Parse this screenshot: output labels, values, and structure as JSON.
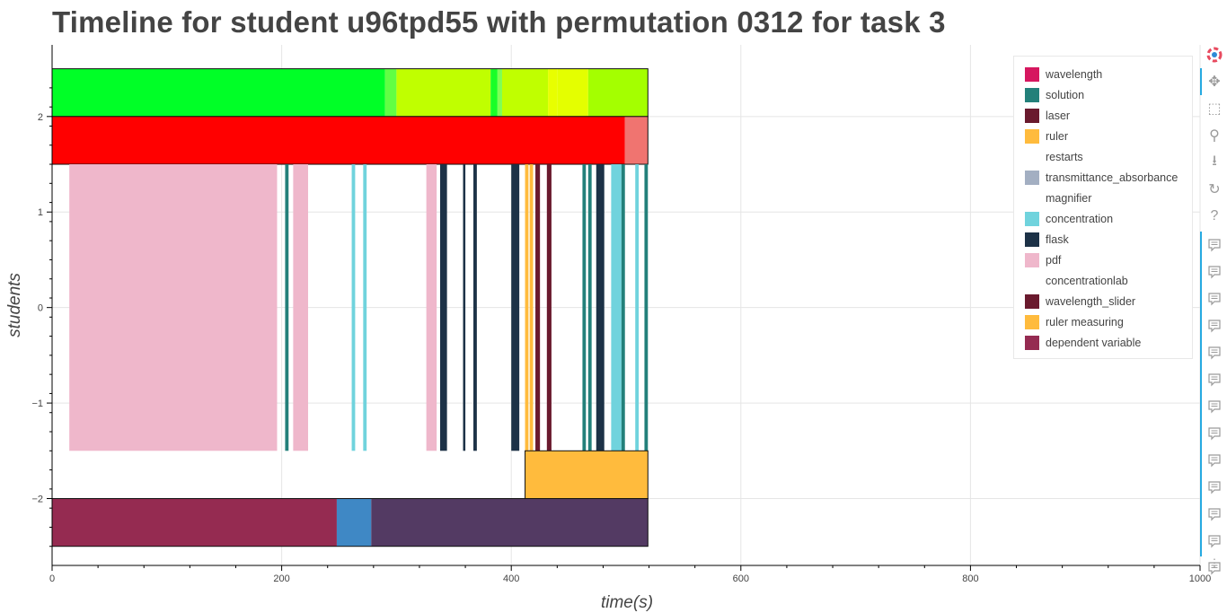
{
  "chart_data": {
    "type": "timeline",
    "title": "Timeline for student u96tpd55 with permutation 0312 for task 3",
    "xlabel": "time(s)",
    "ylabel": "students",
    "xlim": [
      0,
      1000
    ],
    "ylim": [
      -2.7,
      2.75
    ],
    "x_ticks": [
      0,
      200,
      400,
      600,
      800,
      1000
    ],
    "y_ticks": [
      2,
      1,
      0,
      -1,
      -2
    ],
    "y_tick_labels": [
      "2",
      "1",
      "0",
      "−1",
      "−2"
    ],
    "grid": true,
    "legend_position": "top-right",
    "legend": [
      {
        "name": "wavelength",
        "color": "#d6175f"
      },
      {
        "name": "solution",
        "color": "#23807a"
      },
      {
        "name": "laser",
        "color": "#6a1a2e"
      },
      {
        "name": "ruler",
        "color": "#ffbb3d"
      },
      {
        "name": "restarts",
        "color": "#ffffff"
      },
      {
        "name": "transmittance_absorbance",
        "color": "#a3afc2"
      },
      {
        "name": "magnifier",
        "color": "#ffffff"
      },
      {
        "name": "concentration",
        "color": "#70d3dd"
      },
      {
        "name": "flask",
        "color": "#1d3247"
      },
      {
        "name": "pdf",
        "color": "#efb7cb"
      },
      {
        "name": "concentrationlab",
        "color": "#ffffff"
      },
      {
        "name": "wavelength_slider",
        "color": "#6a1a2e"
      },
      {
        "name": "ruler measuring",
        "color": "#ffbb3d"
      },
      {
        "name": "dependent variable",
        "color": "#952b51"
      }
    ],
    "rows": [
      {
        "y0": 2.0,
        "y1": 2.5,
        "segments": [
          {
            "start": 0,
            "end": 290,
            "color": "#00ff27"
          },
          {
            "start": 290,
            "end": 300,
            "color": "#61ff44"
          },
          {
            "start": 300,
            "end": 382,
            "color": "#c0ff00"
          },
          {
            "start": 382,
            "end": 388,
            "color": "#19ff27"
          },
          {
            "start": 388,
            "end": 392,
            "color": "#7fff55"
          },
          {
            "start": 392,
            "end": 432,
            "color": "#c0ff00"
          },
          {
            "start": 432,
            "end": 440,
            "color": "#e8ff00"
          },
          {
            "start": 440,
            "end": 467,
            "color": "#e4ff00"
          },
          {
            "start": 467,
            "end": 519,
            "color": "#a4ff00"
          }
        ]
      },
      {
        "y0": 1.5,
        "y1": 2.0,
        "segments": [
          {
            "start": 0,
            "end": 499,
            "color": "#ff0000"
          },
          {
            "start": 499,
            "end": 519,
            "color": "#f07470"
          }
        ]
      },
      {
        "y0": -1.5,
        "y1": 1.5,
        "segments": [
          {
            "start": 15,
            "end": 196,
            "color": "#efb7cb"
          },
          {
            "start": 203,
            "end": 206,
            "color": "#23807a"
          },
          {
            "start": 210,
            "end": 223,
            "color": "#efb7cb"
          },
          {
            "start": 261,
            "end": 264,
            "color": "#70d3dd"
          },
          {
            "start": 271,
            "end": 274,
            "color": "#70d3dd"
          },
          {
            "start": 326,
            "end": 335,
            "color": "#efb7cb"
          },
          {
            "start": 338,
            "end": 344,
            "color": "#1d3247"
          },
          {
            "start": 358,
            "end": 360,
            "color": "#1d3247"
          },
          {
            "start": 367,
            "end": 370,
            "color": "#1d3247"
          },
          {
            "start": 400,
            "end": 407,
            "color": "#1d3247"
          },
          {
            "start": 412,
            "end": 415,
            "color": "#ffbb3d"
          },
          {
            "start": 416,
            "end": 419,
            "color": "#ffbb3d"
          },
          {
            "start": 421,
            "end": 425,
            "color": "#6a1a2e"
          },
          {
            "start": 431,
            "end": 435,
            "color": "#6a1a2e"
          },
          {
            "start": 462,
            "end": 465,
            "color": "#23807a"
          },
          {
            "start": 467,
            "end": 470,
            "color": "#23807a"
          },
          {
            "start": 474,
            "end": 481,
            "color": "#1d3247"
          },
          {
            "start": 487,
            "end": 496,
            "color": "#70d3dd"
          },
          {
            "start": 496,
            "end": 499,
            "color": "#23807a"
          },
          {
            "start": 508,
            "end": 511,
            "color": "#70d3dd"
          },
          {
            "start": 516,
            "end": 519,
            "color": "#23807a"
          }
        ]
      },
      {
        "y0": -2.0,
        "y1": -1.5,
        "segments": [
          {
            "start": 412,
            "end": 519,
            "color": "#ffbb3d"
          }
        ]
      },
      {
        "y0": -2.5,
        "y1": -2.0,
        "segments": [
          {
            "start": 0,
            "end": 248,
            "color": "#952b51"
          },
          {
            "start": 248,
            "end": 278,
            "color": "#3f88c5"
          },
          {
            "start": 278,
            "end": 519,
            "color": "#533a63"
          }
        ]
      }
    ]
  },
  "toolbar": {
    "logo_icon": "bokeh-logo-icon",
    "tools": [
      "pan-icon",
      "box-zoom-icon",
      "wheel-zoom-icon",
      "save-icon",
      "reset-icon",
      "help-icon"
    ],
    "comment_count": 13,
    "more_label": "⋮"
  }
}
